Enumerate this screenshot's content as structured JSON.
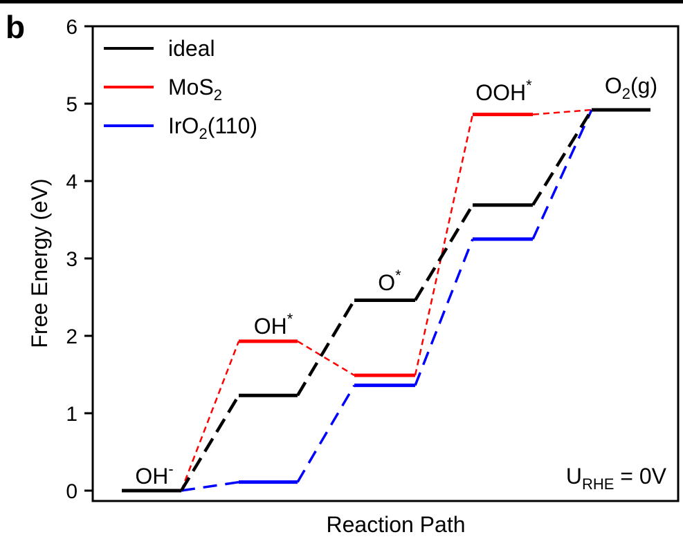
{
  "panel_label": "b",
  "chart_data": {
    "type": "line",
    "xlabel": "Reaction Path",
    "ylabel": "Free Energy (eV)",
    "ylim": [
      0,
      6
    ],
    "yticks": [
      "0",
      "1",
      "2",
      "3",
      "4",
      "5",
      "6"
    ],
    "grid": false,
    "legend_position": "top-left",
    "annotation": {
      "main": "U",
      "sub": "RHE",
      "tail": " = 0V"
    },
    "species": [
      {
        "base": "OH",
        "sup": "-",
        "sub": ""
      },
      {
        "base": "OH",
        "sup": "*",
        "sub": ""
      },
      {
        "base": "O",
        "sup": "*",
        "sub": ""
      },
      {
        "base": "OOH",
        "sup": "*",
        "sub": ""
      },
      {
        "base": "O",
        "sup": "",
        "sub": "2",
        "tail": "(g)"
      }
    ],
    "series": [
      {
        "name": "ideal",
        "legend": {
          "base": "ideal",
          "sub": "",
          "tail": ""
        },
        "color": "#000000",
        "values": [
          0,
          1.23,
          2.46,
          3.69,
          4.92
        ]
      },
      {
        "name": "MoS2",
        "legend": {
          "base": "MoS",
          "sub": "2",
          "tail": ""
        },
        "color": "#ff0000",
        "values": [
          0,
          1.93,
          1.49,
          4.86,
          4.92
        ]
      },
      {
        "name": "IrO2(110)",
        "legend": {
          "base": "IrO",
          "sub": "2",
          "tail": "(110)"
        },
        "color": "#0000ff",
        "values": [
          0,
          0.11,
          1.36,
          3.25,
          4.92
        ]
      }
    ]
  }
}
